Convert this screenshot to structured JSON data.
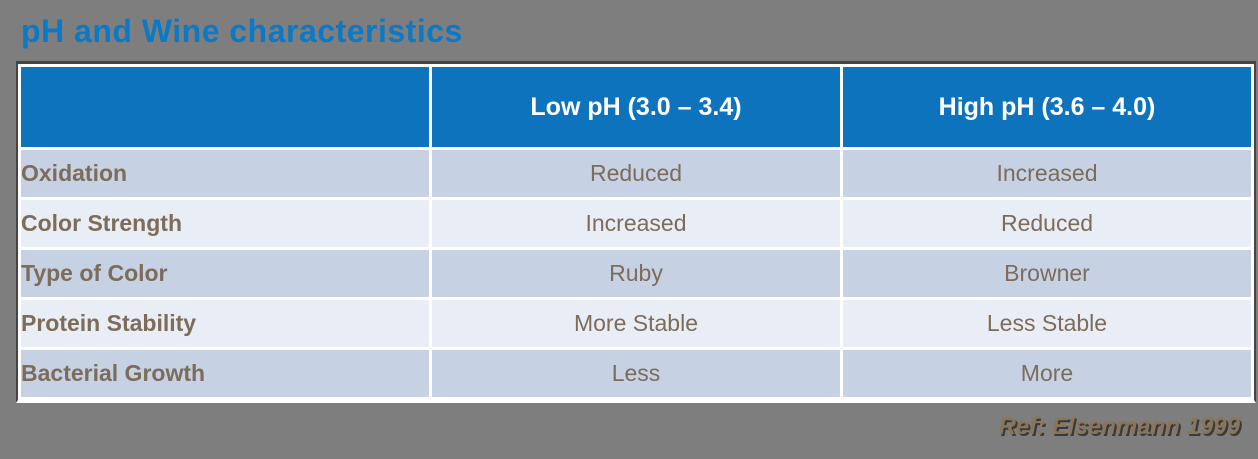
{
  "slide": {
    "title": "pH and Wine characteristics",
    "reference": "Ref: Elsenmann 1999"
  },
  "table": {
    "columns": [
      {
        "label": ""
      },
      {
        "label": "Low pH (3.0 – 3.4)"
      },
      {
        "label": "High pH (3.6 – 4.0)"
      }
    ],
    "rows": [
      {
        "label": "Oxidation",
        "low": "Reduced",
        "high": "Increased"
      },
      {
        "label": "Color Strength",
        "low": "Increased",
        "high": "Reduced"
      },
      {
        "label": "Type of Color",
        "low": "Ruby",
        "high": "Browner"
      },
      {
        "label": "Protein Stability",
        "low": "More Stable",
        "high": "Less Stable"
      },
      {
        "label": "Bacterial Growth",
        "low": "Less",
        "high": "More"
      }
    ]
  },
  "colors": {
    "background": "#7E7E7E",
    "title_blue": "#0A79C8",
    "header_blue": "#0E73BD",
    "header_text": "#FFFFFF",
    "row_dark": "#C6D2E4",
    "row_light": "#E9EDF5",
    "body_text_brown": "#7C6C59",
    "reference_brown": "#8B7457",
    "table_border_dark": "#454545",
    "grid_white": "#FFFFFF"
  }
}
